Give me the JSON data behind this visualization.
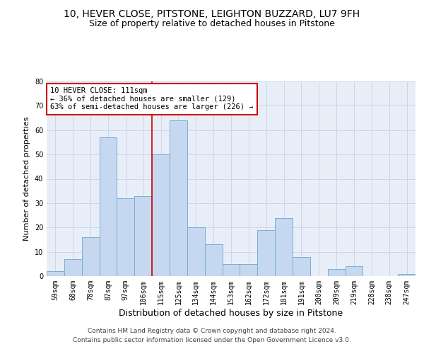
{
  "title1": "10, HEVER CLOSE, PITSTONE, LEIGHTON BUZZARD, LU7 9FH",
  "title2": "Size of property relative to detached houses in Pitstone",
  "xlabel": "Distribution of detached houses by size in Pitstone",
  "ylabel": "Number of detached properties",
  "footer1": "Contains HM Land Registry data © Crown copyright and database right 2024.",
  "footer2": "Contains public sector information licensed under the Open Government Licence v3.0.",
  "bin_labels": [
    "59sqm",
    "68sqm",
    "78sqm",
    "87sqm",
    "97sqm",
    "106sqm",
    "115sqm",
    "125sqm",
    "134sqm",
    "144sqm",
    "153sqm",
    "162sqm",
    "172sqm",
    "181sqm",
    "191sqm",
    "200sqm",
    "209sqm",
    "219sqm",
    "228sqm",
    "238sqm",
    "247sqm"
  ],
  "bar_values": [
    2,
    7,
    16,
    57,
    32,
    33,
    50,
    64,
    20,
    13,
    5,
    5,
    19,
    24,
    8,
    0,
    3,
    4,
    0,
    0,
    1
  ],
  "bar_color": "#c5d8f0",
  "bar_edge_color": "#7badd4",
  "annotation_line1": "10 HEVER CLOSE: 111sqm",
  "annotation_line2": "← 36% of detached houses are smaller (129)",
  "annotation_line3": "63% of semi-detached houses are larger (226) →",
  "annotation_box_color": "#ffffff",
  "annotation_box_edge_color": "#cc0000",
  "vline_color": "#cc0000",
  "vline_x_index": 5.5,
  "ylim": [
    0,
    80
  ],
  "yticks": [
    0,
    10,
    20,
    30,
    40,
    50,
    60,
    70,
    80
  ],
  "grid_color": "#cdd6e8",
  "bg_color": "#e8eef8",
  "title1_fontsize": 10,
  "title2_fontsize": 9,
  "xlabel_fontsize": 9,
  "ylabel_fontsize": 8,
  "tick_fontsize": 7,
  "annot_fontsize": 7.5,
  "footer_fontsize": 6.5
}
